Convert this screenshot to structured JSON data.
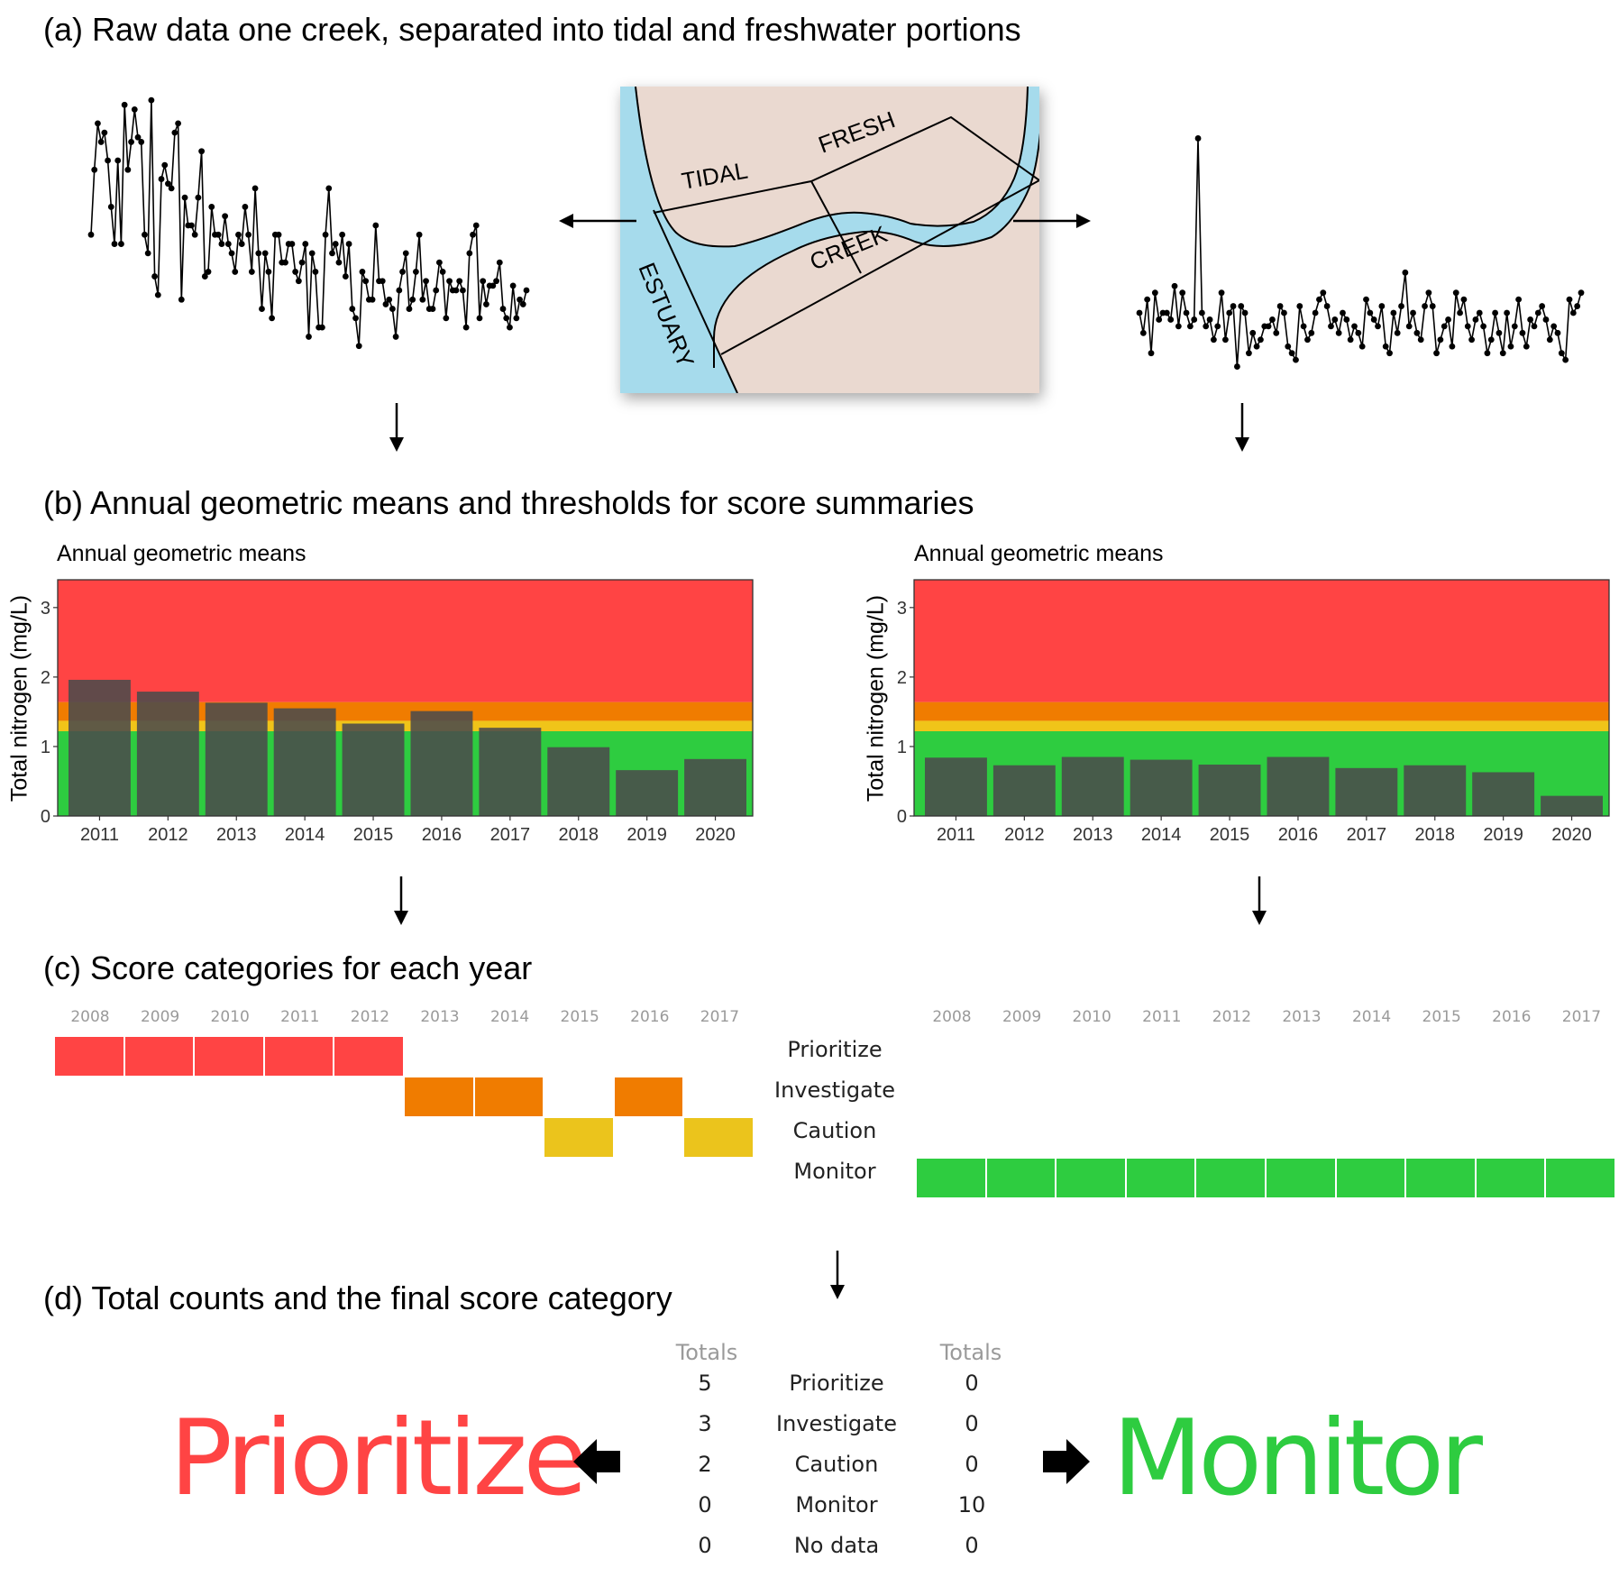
{
  "sections": {
    "a": "(a) Raw data one creek, separated into tidal and freshwater portions",
    "b": "(b) Annual geometric means and thresholds for score summaries",
    "c": "(c) Score categories for each year",
    "d": "(d) Total counts and the final score category"
  },
  "map": {
    "labels": {
      "tidal": "TIDAL",
      "fresh": "FRESH",
      "creek": "CREEK",
      "estuary": "ESTUARY"
    },
    "colors": {
      "land": "#ead9d0",
      "water": "#a6dbec"
    }
  },
  "raw_series": {
    "tidal": [
      2.4,
      3.1,
      3.6,
      3.4,
      3.5,
      3.2,
      2.7,
      2.3,
      3.2,
      2.3,
      3.8,
      3.1,
      3.4,
      3.75,
      3.45,
      3.4,
      2.4,
      2.2,
      3.85,
      1.95,
      1.75,
      3.0,
      3.15,
      2.95,
      2.9,
      3.5,
      3.6,
      1.7,
      2.8,
      2.5,
      2.5,
      2.4,
      2.8,
      3.3,
      1.95,
      2.0,
      2.7,
      2.4,
      2.4,
      2.3,
      2.6,
      2.3,
      2.2,
      2.0,
      2.4,
      2.3,
      2.7,
      2.4,
      2.0,
      2.9,
      2.2,
      1.6,
      2.2,
      2.0,
      1.5,
      2.4,
      2.4,
      2.1,
      2.1,
      2.3,
      2.3,
      2.0,
      1.9,
      2.1,
      2.3,
      1.3,
      2.2,
      2.0,
      1.4,
      1.4,
      2.4,
      2.9,
      2.2,
      2.3,
      2.1,
      2.4,
      1.95,
      2.3,
      1.6,
      1.5,
      1.2,
      2.0,
      1.9,
      1.7,
      1.7,
      2.5,
      1.9,
      1.9,
      1.65,
      1.7,
      1.6,
      1.3,
      1.8,
      2.0,
      2.2,
      1.6,
      1.7,
      2.0,
      2.4,
      1.7,
      1.9,
      1.6,
      1.6,
      1.8,
      2.1,
      2.0,
      1.5,
      1.9,
      1.8,
      1.8,
      1.9,
      1.8,
      1.4,
      2.2,
      2.4,
      2.5,
      1.5,
      1.9,
      1.65,
      1.85,
      1.85,
      1.9,
      2.1,
      1.6,
      1.5,
      1.4,
      1.85,
      1.5,
      1.7,
      1.65,
      1.8
    ],
    "fresh": [
      0.55,
      0.4,
      0.65,
      0.25,
      0.7,
      0.5,
      0.55,
      0.55,
      0.5,
      0.75,
      0.45,
      0.7,
      0.55,
      0.45,
      0.5,
      1.85,
      0.55,
      0.45,
      0.5,
      0.35,
      0.45,
      0.7,
      0.35,
      0.55,
      0.6,
      0.15,
      0.6,
      0.55,
      0.25,
      0.4,
      0.3,
      0.35,
      0.45,
      0.45,
      0.5,
      0.4,
      0.6,
      0.55,
      0.3,
      0.25,
      0.2,
      0.6,
      0.45,
      0.35,
      0.4,
      0.55,
      0.65,
      0.7,
      0.6,
      0.45,
      0.5,
      0.4,
      0.55,
      0.5,
      0.35,
      0.45,
      0.4,
      0.3,
      0.65,
      0.55,
      0.5,
      0.45,
      0.6,
      0.3,
      0.25,
      0.55,
      0.4,
      0.6,
      0.85,
      0.45,
      0.55,
      0.4,
      0.35,
      0.6,
      0.7,
      0.6,
      0.25,
      0.35,
      0.45,
      0.5,
      0.3,
      0.7,
      0.55,
      0.65,
      0.45,
      0.35,
      0.5,
      0.55,
      0.45,
      0.25,
      0.35,
      0.55,
      0.4,
      0.25,
      0.55,
      0.3,
      0.45,
      0.65,
      0.4,
      0.3,
      0.5,
      0.45,
      0.55,
      0.6,
      0.5,
      0.35,
      0.45,
      0.4,
      0.25,
      0.2,
      0.65,
      0.55,
      0.6,
      0.7
    ]
  },
  "chart_data": [
    {
      "type": "bar",
      "title": "Annual geometric means",
      "ylabel": "Total nitrogen (mg/L)",
      "categories": [
        "2011",
        "2012",
        "2013",
        "2014",
        "2015",
        "2016",
        "2017",
        "2018",
        "2019",
        "2020"
      ],
      "values": [
        1.96,
        1.79,
        1.63,
        1.55,
        1.33,
        1.51,
        1.27,
        0.99,
        0.66,
        0.82
      ],
      "ylim": [
        0,
        3.4
      ],
      "yticks": [
        0,
        1,
        2,
        3
      ],
      "threshold_bands": [
        {
          "from": 0,
          "to": 1.22,
          "color": "#2ecc40"
        },
        {
          "from": 1.22,
          "to": 1.37,
          "color": "#f0c419"
        },
        {
          "from": 1.37,
          "to": 1.64,
          "color": "#f07c00"
        },
        {
          "from": 1.64,
          "to": 3.4,
          "color": "#ff4444"
        }
      ]
    },
    {
      "type": "bar",
      "title": "Annual geometric means",
      "ylabel": "Total nitrogen (mg/L)",
      "categories": [
        "2011",
        "2012",
        "2013",
        "2014",
        "2015",
        "2016",
        "2017",
        "2018",
        "2019",
        "2020"
      ],
      "values": [
        0.84,
        0.73,
        0.85,
        0.81,
        0.74,
        0.85,
        0.69,
        0.73,
        0.63,
        0.29
      ],
      "ylim": [
        0,
        3.4
      ],
      "yticks": [
        0,
        1,
        2,
        3
      ],
      "threshold_bands": [
        {
          "from": 0,
          "to": 1.22,
          "color": "#2ecc40"
        },
        {
          "from": 1.22,
          "to": 1.37,
          "color": "#f0c419"
        },
        {
          "from": 1.37,
          "to": 1.64,
          "color": "#f07c00"
        },
        {
          "from": 1.64,
          "to": 3.4,
          "color": "#ff4444"
        }
      ]
    }
  ],
  "categories": {
    "labels": [
      "Prioritize",
      "Investigate",
      "Caution",
      "Monitor"
    ],
    "colors": {
      "Prioritize": "#ff4444",
      "Investigate": "#f07c00",
      "Caution": "#ebc41c",
      "Monitor": "#2ecc40"
    },
    "years": [
      "2008",
      "2009",
      "2010",
      "2011",
      "2012",
      "2013",
      "2014",
      "2015",
      "2016",
      "2017"
    ],
    "left": [
      "Prioritize",
      "Prioritize",
      "Prioritize",
      "Prioritize",
      "Prioritize",
      "Investigate",
      "Investigate",
      "Caution",
      "Investigate",
      "Caution"
    ],
    "right": [
      "Monitor",
      "Monitor",
      "Monitor",
      "Monitor",
      "Monitor",
      "Monitor",
      "Monitor",
      "Monitor",
      "Monitor",
      "Monitor"
    ]
  },
  "totals": {
    "header": "Totals",
    "labels": [
      "Prioritize",
      "Investigate",
      "Caution",
      "Monitor",
      "No data"
    ],
    "left": [
      "5",
      "3",
      "2",
      "0",
      "0"
    ],
    "right": [
      "0",
      "0",
      "0",
      "10",
      "0"
    ]
  },
  "final": {
    "left": "Prioritize",
    "left_color": "#ff4444",
    "right": "Monitor",
    "right_color": "#2ecc40"
  }
}
